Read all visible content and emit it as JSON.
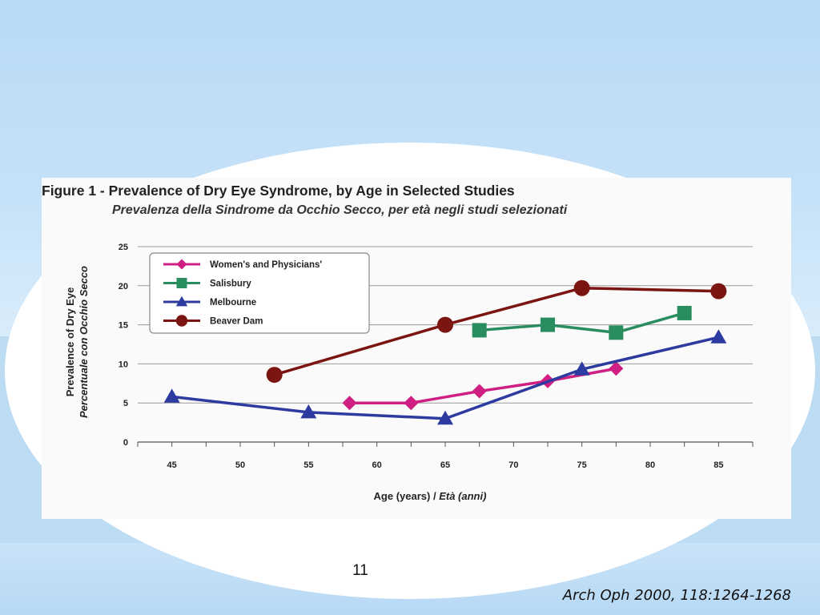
{
  "figure": {
    "title": "Figure 1 - Prevalence of Dry Eye Syndrome, by Age in Selected Studies",
    "subtitle": "Prevalenza della Sindrome da Occhio Secco, per età negli studi selezionati"
  },
  "chart_data": {
    "type": "line",
    "xlabel": "Age (years) / Età (anni)",
    "ylabel": "Prevalence of Dry Eye",
    "ylabel_secondary": "Percentuale con Occhio Secco",
    "xlim": [
      42.5,
      87.5
    ],
    "ylim": [
      0,
      25
    ],
    "x_ticks": [
      45,
      50,
      55,
      60,
      65,
      70,
      75,
      80,
      85
    ],
    "y_ticks": [
      0,
      5,
      10,
      15,
      20,
      25
    ],
    "grid": "horizontal",
    "legend_position": "top-left",
    "series": [
      {
        "name": "Women's and Physicians'",
        "color": "#d01f83",
        "marker": "diamond",
        "x": [
          58,
          62.5,
          67.5,
          72.5,
          77.5
        ],
        "y": [
          5.0,
          5.0,
          6.5,
          7.8,
          9.4
        ]
      },
      {
        "name": "Salisbury",
        "color": "#2a8d60",
        "marker": "square",
        "x": [
          67.5,
          72.5,
          77.5,
          82.5
        ],
        "y": [
          14.3,
          15.0,
          14.0,
          16.5
        ]
      },
      {
        "name": "Melbourne",
        "color": "#2d3aa0",
        "marker": "triangle",
        "x": [
          45,
          55,
          65,
          75,
          85
        ],
        "y": [
          5.8,
          3.8,
          3.0,
          9.3,
          13.4
        ]
      },
      {
        "name": "Beaver Dam",
        "color": "#7a1512",
        "marker": "circle",
        "x": [
          52.5,
          65,
          75,
          85
        ],
        "y": [
          8.6,
          15.0,
          19.7,
          19.3
        ]
      }
    ]
  },
  "slide": {
    "page_number": "11",
    "citation": "Arch Oph 2000, 118:1264-1268"
  }
}
